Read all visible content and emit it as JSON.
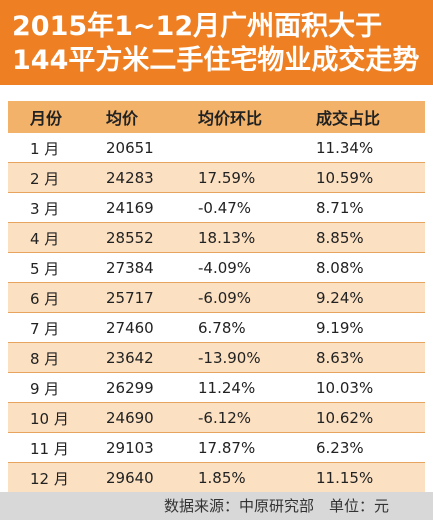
{
  "title": {
    "line1": "2015年1~12月广州面积大于",
    "line2": "144平方米二手住宅物业成交走势"
  },
  "table": {
    "headers": [
      "月份",
      "均价",
      "均价环比",
      "成交占比"
    ],
    "rows": [
      [
        "1 月",
        "20651",
        "",
        "11.34%"
      ],
      [
        "2 月",
        "24283",
        "17.59%",
        "10.59%"
      ],
      [
        "3 月",
        "24169",
        "-0.47%",
        "8.71%"
      ],
      [
        "4 月",
        "28552",
        "18.13%",
        "8.85%"
      ],
      [
        "5 月",
        "27384",
        "-4.09%",
        "8.08%"
      ],
      [
        "6 月",
        "25717",
        "-6.09%",
        "9.24%"
      ],
      [
        "7 月",
        "27460",
        "6.78%",
        "9.19%"
      ],
      [
        "8 月",
        "23642",
        "-13.90%",
        "8.63%"
      ],
      [
        "9 月",
        "26299",
        "11.24%",
        "10.03%"
      ],
      [
        "10 月",
        "24690",
        "-6.12%",
        "10.62%"
      ],
      [
        "11 月",
        "29103",
        "17.87%",
        "6.23%"
      ],
      [
        "12 月",
        "29640",
        "1.85%",
        "11.15%"
      ]
    ]
  },
  "footer": {
    "text": "数据来源：中原研究部　单位：元"
  },
  "colors": {
    "title_bg": "#ee7f22",
    "header_bg": "#f2b26a",
    "alt_row_bg": "#fbe0c2",
    "footer_bg": "#d8d8d8"
  }
}
